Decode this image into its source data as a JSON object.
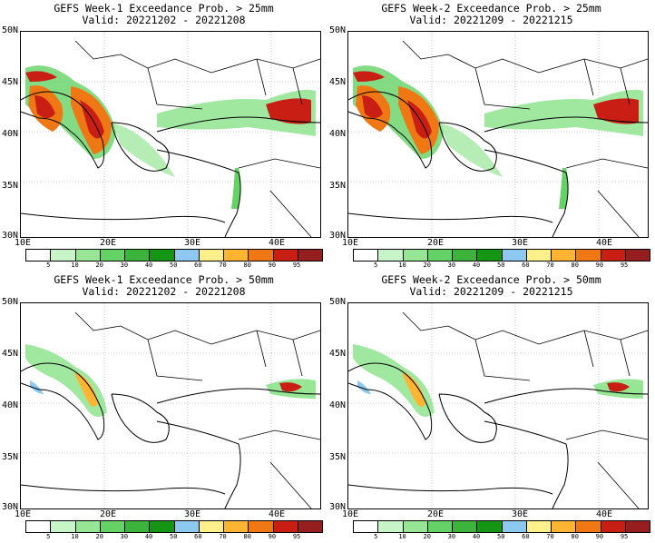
{
  "panels": [
    {
      "title": "GEFS Week-1 Exceedance Prob. > 25mm",
      "valid": "Valid: 20221202 - 20221208",
      "threshold": 25
    },
    {
      "title": "GEFS Week-2 Exceedance Prob. > 25mm",
      "valid": "Valid: 20221209 - 20221215",
      "threshold": 25
    },
    {
      "title": "GEFS Week-1 Exceedance Prob. > 50mm",
      "valid": "Valid: 20221202 - 20221208",
      "threshold": 50
    },
    {
      "title": "GEFS Week-2 Exceedance Prob. > 50mm",
      "valid": "Valid: 20221209 - 20221215",
      "threshold": 50
    }
  ],
  "lat_ticks": [
    "50N",
    "45N",
    "40N",
    "35N",
    "30N"
  ],
  "lon_ticks": [
    "10E",
    "20E",
    "30E",
    "40E"
  ],
  "colorbar": {
    "labels": [
      "5",
      "10",
      "20",
      "30",
      "40",
      "50",
      "60",
      "70",
      "80",
      "90",
      "95"
    ],
    "colors": [
      "#ffffff",
      "#c8f5c8",
      "#96e696",
      "#64d264",
      "#3cb43c",
      "#149614",
      "#8cc8f0",
      "#fff08c",
      "#ffb432",
      "#f07814",
      "#c81e14",
      "#961e1e"
    ]
  }
}
